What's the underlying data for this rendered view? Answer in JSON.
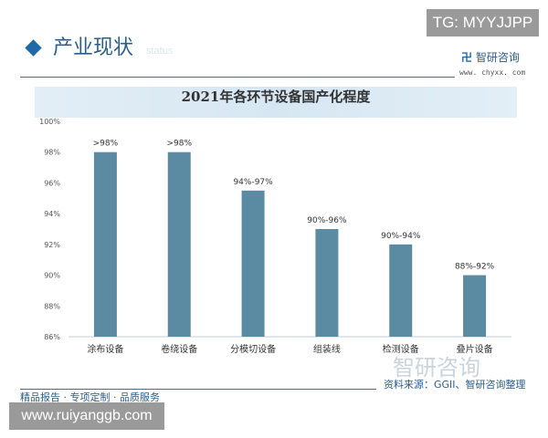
{
  "watermark_top": "TG: MYYJJPP",
  "watermark_bottom": "www.ruiyanggb.com",
  "header": {
    "section": "产业现状",
    "section_sub": "status",
    "logo": "智研咨询",
    "logo_url": "www. chyxx. com"
  },
  "footer": {
    "source": "资料来源：GGII、智研咨询整理",
    "slogan": "精品报告 · 专项定制 · 品质服务",
    "watermark": "智研咨询"
  },
  "colors": {
    "bar": "#5b8ba3",
    "accent": "#1e6aa8"
  },
  "chart_data": {
    "type": "bar",
    "title": "2021年各环节设备国产化程度",
    "categories": [
      "涂布设备",
      "卷绕设备",
      "分模切设备",
      "组装线",
      "检测设备",
      "叠片设备"
    ],
    "values": [
      98,
      98,
      95.5,
      93,
      92,
      90
    ],
    "data_labels": [
      ">98%",
      ">98%",
      "94%-97%",
      "90%-96%",
      "90%-94%",
      "88%-92%"
    ],
    "yticks": [
      "86%",
      "88%",
      "90%",
      "92%",
      "94%",
      "96%",
      "98%",
      "100%"
    ],
    "ylim": [
      86,
      100
    ],
    "grid": false
  }
}
